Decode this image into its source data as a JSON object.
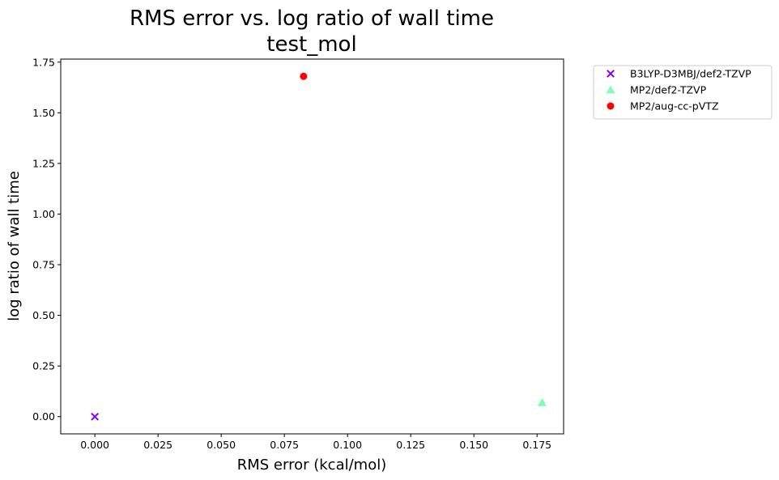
{
  "chart_data": {
    "type": "scatter",
    "title": "RMS error vs. log ratio of wall time",
    "subtitle": "test_mol",
    "xlabel": "RMS error (kcal/mol)",
    "ylabel": "log ratio of wall time",
    "xlim": [
      -0.0135,
      0.1855
    ],
    "ylim": [
      -0.085,
      1.765
    ],
    "x_ticks": [
      0.0,
      0.025,
      0.05,
      0.075,
      0.1,
      0.125,
      0.15,
      0.175
    ],
    "x_tick_labels": [
      "0.000",
      "0.025",
      "0.050",
      "0.075",
      "0.100",
      "0.125",
      "0.150",
      "0.175"
    ],
    "y_ticks": [
      0.0,
      0.25,
      0.5,
      0.75,
      1.0,
      1.25,
      1.5,
      1.75
    ],
    "y_tick_labels": [
      "0.00",
      "0.25",
      "0.50",
      "0.75",
      "1.00",
      "1.25",
      "1.50",
      "1.75"
    ],
    "grid": false,
    "legend_position": "outside-top-right",
    "series": [
      {
        "name": "B3LYP-D3MBJ/def2-TZVP",
        "marker": "x",
        "color": "#8000ff",
        "points": [
          {
            "x": 0.0,
            "y": 0.0
          }
        ]
      },
      {
        "name": "MP2/def2-TZVP",
        "marker": "triangle",
        "color": "#80ffb4",
        "points": [
          {
            "x": 0.177,
            "y": 0.07
          }
        ]
      },
      {
        "name": "MP2/aug-cc-pVTZ",
        "marker": "circle",
        "color": "#ff0000",
        "points": [
          {
            "x": 0.0826,
            "y": 1.68
          }
        ]
      }
    ]
  }
}
